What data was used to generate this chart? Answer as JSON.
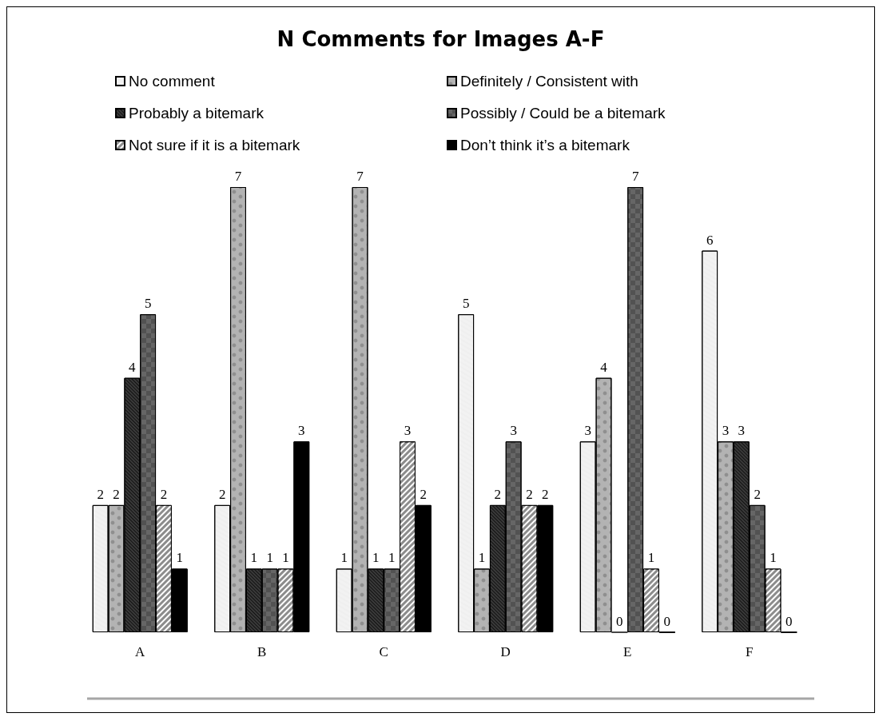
{
  "chart_data": {
    "type": "bar",
    "title": "N Comments for Images A-F",
    "categories": [
      "A",
      "B",
      "C",
      "D",
      "E",
      "F"
    ],
    "series": [
      {
        "name": "No comment",
        "color": "#f2f2f2",
        "values": [
          2,
          2,
          1,
          5,
          3,
          6
        ]
      },
      {
        "name": "Definitely / Consistent with",
        "color": "#b3b3b3",
        "values": [
          2,
          7,
          7,
          1,
          4,
          3
        ]
      },
      {
        "name": "Probably a bitemark",
        "color": "#3a3a3a",
        "values": [
          4,
          1,
          1,
          2,
          0,
          3
        ]
      },
      {
        "name": "Possibly / Could be a bitemark",
        "color": "#666666",
        "values": [
          5,
          1,
          1,
          3,
          7,
          2
        ]
      },
      {
        "name": "Not sure if it is a bitemark",
        "color": "#8c8c8c",
        "values": [
          2,
          1,
          3,
          2,
          1,
          1
        ]
      },
      {
        "name": "Don’t think it’s a bitemark",
        "color": "#000000",
        "values": [
          1,
          3,
          2,
          2,
          0,
          0
        ]
      }
    ],
    "data_labels": true,
    "legend": "top",
    "grid": false
  }
}
